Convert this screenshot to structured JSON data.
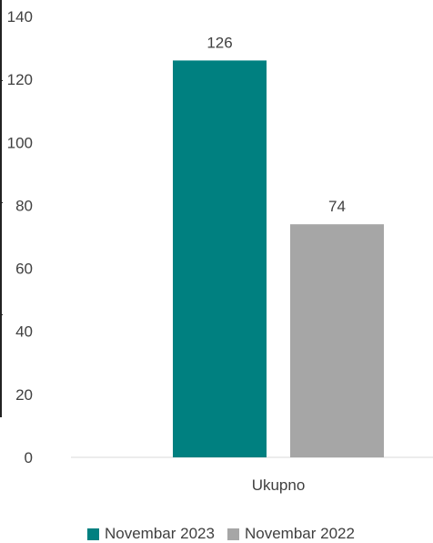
{
  "chart_data": {
    "type": "bar",
    "categories": [
      "Ukupno"
    ],
    "series": [
      {
        "name": "Novembar 2023",
        "values": [
          126
        ],
        "color": "#008080"
      },
      {
        "name": "Novembar 2022",
        "values": [
          74
        ],
        "color": "#a6a6a6"
      }
    ],
    "ylim": [
      0,
      140
    ],
    "yticks": [
      0,
      20,
      40,
      60,
      80,
      100,
      120,
      140
    ],
    "data_labels": [
      "126",
      "74"
    ],
    "grid": false,
    "legend_position": "bottom"
  }
}
